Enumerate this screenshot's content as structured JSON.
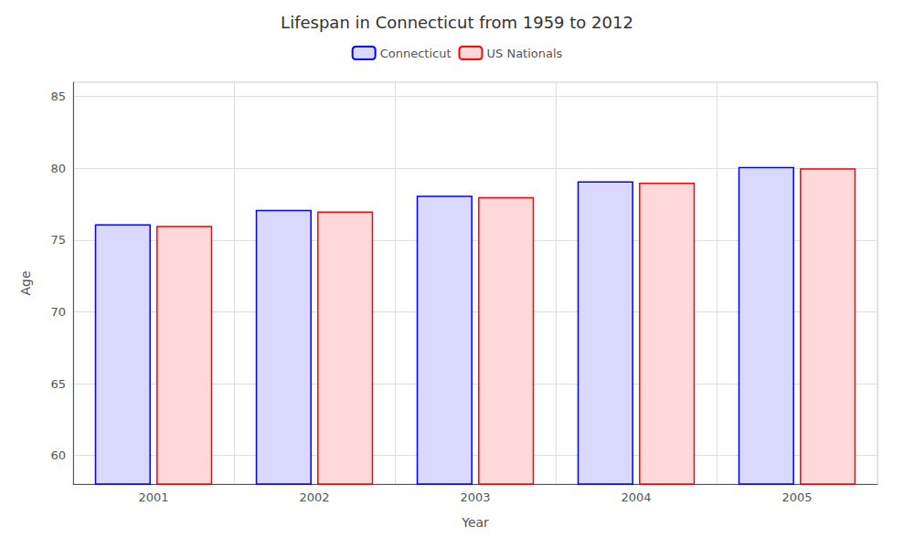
{
  "chart_data": {
    "type": "bar",
    "title": "Lifespan in Connecticut from 1959 to 2012",
    "x_label": "Year",
    "y_label": "Age",
    "categories": [
      "2001",
      "2002",
      "2003",
      "2004",
      "2005"
    ],
    "series": [
      {
        "name": "Connecticut",
        "color": "#0000ff",
        "values": [
          76.1,
          77.1,
          78.1,
          79.1,
          80.1
        ]
      },
      {
        "name": "US Nationals",
        "color": "#ff0000",
        "values": [
          76.0,
          77.0,
          78.0,
          79.0,
          80.0
        ]
      }
    ],
    "ylim": [
      58,
      86
    ],
    "yticks": [
      60,
      65,
      70,
      75,
      80,
      85
    ],
    "grid": true,
    "legend": "top"
  }
}
